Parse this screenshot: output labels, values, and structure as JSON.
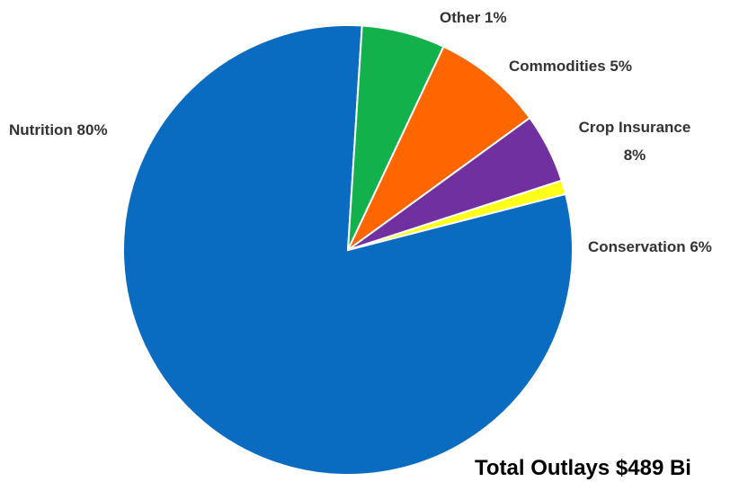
{
  "chart_data": {
    "type": "pie",
    "slices": [
      {
        "name": "Nutrition",
        "value": 80,
        "label": "Nutrition 80%",
        "color": "#0a6cc0"
      },
      {
        "name": "Conservation",
        "value": 6,
        "label": "Conservation 6%",
        "color": "#12b14b"
      },
      {
        "name": "Crop Insurance",
        "value": 8,
        "label_lines": [
          "Crop Insurance",
          "8%"
        ],
        "color": "#ff6600"
      },
      {
        "name": "Commodities",
        "value": 5,
        "label": "Commodities 5%",
        "color": "#7030a0"
      },
      {
        "name": "Other",
        "value": 1,
        "label": "Other 1%",
        "color": "#ffff19"
      }
    ]
  },
  "footer": {
    "text": "Total Outlays $489 Bi"
  }
}
